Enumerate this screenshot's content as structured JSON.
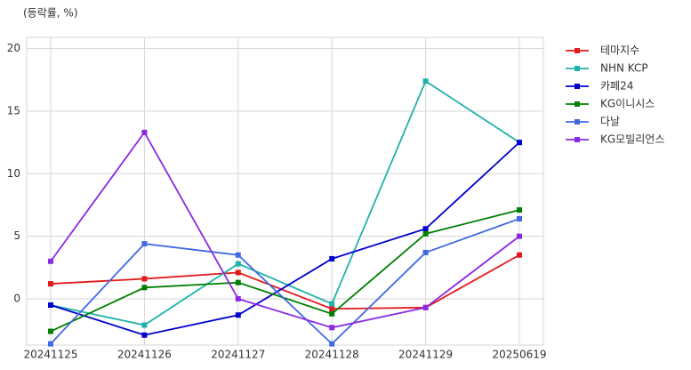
{
  "chart_data": {
    "type": "line",
    "y_label": "(등락률, %)",
    "categories": [
      "20241125",
      "20241126",
      "20241127",
      "20241128",
      "20241129",
      "20250619"
    ],
    "series": [
      {
        "name": "테마지수",
        "color": "#e31a1c",
        "values": [
          1.2,
          1.6,
          2.1,
          -0.8,
          -0.7,
          3.5
        ]
      },
      {
        "name": "NHN KCP",
        "color": "#20b2aa",
        "values": [
          -0.5,
          -2.1,
          2.8,
          -0.4,
          17.4,
          12.5
        ]
      },
      {
        "name": "카페24",
        "color": "#0000cd",
        "values": [
          -0.5,
          -2.9,
          -1.3,
          3.2,
          5.6,
          12.5
        ]
      },
      {
        "name": "KG이니시스",
        "color": "#008000",
        "values": [
          -2.6,
          0.9,
          1.3,
          -1.2,
          5.2,
          7.1
        ]
      },
      {
        "name": "다날",
        "color": "#4169e1",
        "values": [
          -3.6,
          4.4,
          3.5,
          -3.6,
          3.7,
          6.4
        ]
      },
      {
        "name": "KG모빌리언스",
        "color": "#8a2be2",
        "values": [
          3.0,
          13.3,
          0.0,
          -2.3,
          -0.7,
          5.0
        ]
      }
    ],
    "ylim": [
      -3.7,
      20.9
    ],
    "yticks": [
      0,
      5,
      10,
      15,
      20
    ],
    "grid": true,
    "legend": "outside right"
  }
}
